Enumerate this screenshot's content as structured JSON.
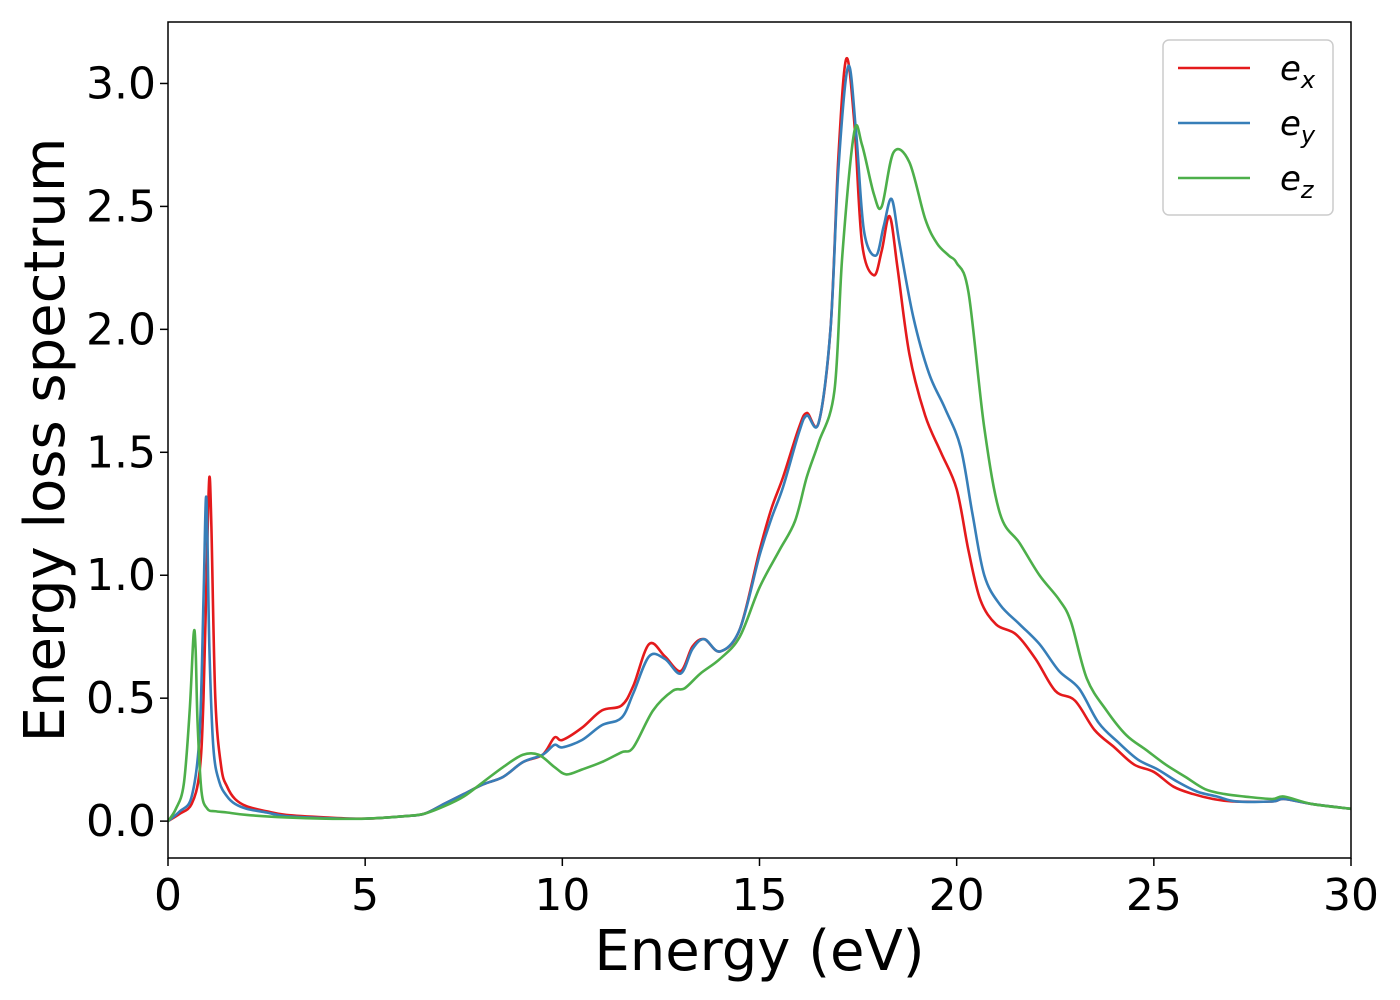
{
  "chart_data": {
    "type": "line",
    "title": "",
    "xlabel": "Energy (eV)",
    "ylabel": "Energy loss spectrum",
    "xlim": [
      0,
      30
    ],
    "ylim": [
      -0.15,
      3.25
    ],
    "xticks": [
      0,
      5,
      10,
      15,
      20,
      25,
      30
    ],
    "xtick_labels": [
      "0",
      "5",
      "10",
      "15",
      "20",
      "25",
      "30"
    ],
    "yticks": [
      0.0,
      0.5,
      1.0,
      1.5,
      2.0,
      2.5,
      3.0
    ],
    "ytick_labels": [
      "0.0",
      "0.5",
      "1.0",
      "1.5",
      "2.0",
      "2.5",
      "3.0"
    ],
    "grid": false,
    "legend_position": "top-right",
    "series": [
      {
        "name": "e_x",
        "name_base": "e",
        "name_sub": "x",
        "color": "#e41a1c",
        "x": [
          0,
          0.3,
          0.6,
          0.8,
          0.9,
          1.0,
          1.05,
          1.1,
          1.2,
          1.35,
          1.5,
          1.7,
          2.0,
          2.5,
          3,
          4,
          5,
          6,
          6.5,
          7,
          7.5,
          8,
          8.5,
          9,
          9.5,
          9.8,
          10,
          10.5,
          11,
          11.5,
          11.8,
          12.2,
          12.6,
          13,
          13.3,
          13.6,
          14,
          14.5,
          15,
          15.3,
          15.6,
          16,
          16.2,
          16.5,
          16.8,
          17.0,
          17.2,
          17.4,
          17.6,
          17.9,
          18.1,
          18.3,
          18.5,
          18.8,
          19.2,
          19.6,
          20,
          20.3,
          20.6,
          21,
          21.5,
          22,
          22.5,
          23,
          23.5,
          24,
          24.5,
          25,
          25.5,
          26,
          26.5,
          27,
          28,
          28.3,
          29,
          30
        ],
        "y": [
          0.0,
          0.03,
          0.07,
          0.2,
          0.5,
          1.15,
          1.4,
          1.2,
          0.5,
          0.22,
          0.14,
          0.09,
          0.06,
          0.04,
          0.025,
          0.015,
          0.01,
          0.02,
          0.03,
          0.07,
          0.11,
          0.15,
          0.18,
          0.24,
          0.27,
          0.34,
          0.33,
          0.38,
          0.45,
          0.47,
          0.55,
          0.72,
          0.67,
          0.61,
          0.71,
          0.74,
          0.69,
          0.78,
          1.1,
          1.27,
          1.4,
          1.6,
          1.66,
          1.62,
          2.0,
          2.7,
          3.1,
          2.85,
          2.35,
          2.22,
          2.32,
          2.46,
          2.25,
          1.9,
          1.65,
          1.5,
          1.35,
          1.1,
          0.9,
          0.8,
          0.76,
          0.66,
          0.53,
          0.49,
          0.37,
          0.3,
          0.23,
          0.2,
          0.14,
          0.11,
          0.09,
          0.08,
          0.08,
          0.09,
          0.07,
          0.05
        ]
      },
      {
        "name": "e_y",
        "name_base": "e",
        "name_sub": "y",
        "color": "#377eb8",
        "x": [
          0,
          0.3,
          0.6,
          0.8,
          0.9,
          0.96,
          1.0,
          1.05,
          1.15,
          1.3,
          1.5,
          1.7,
          2.0,
          2.5,
          3,
          4,
          5,
          6,
          6.5,
          7,
          7.5,
          8,
          8.5,
          9,
          9.5,
          9.8,
          10,
          10.5,
          11,
          11.5,
          11.8,
          12.2,
          12.6,
          13,
          13.3,
          13.6,
          14,
          14.5,
          15,
          15.3,
          15.6,
          16,
          16.2,
          16.5,
          16.8,
          17.0,
          17.25,
          17.45,
          17.65,
          17.95,
          18.15,
          18.35,
          18.55,
          18.9,
          19.3,
          19.7,
          20.1,
          20.4,
          20.7,
          21.1,
          21.6,
          22.1,
          22.6,
          23.1,
          23.6,
          24.1,
          24.6,
          25.1,
          25.6,
          26.1,
          26.6,
          27.1,
          28,
          28.3,
          29,
          30
        ],
        "y": [
          0.0,
          0.04,
          0.1,
          0.35,
          0.9,
          1.31,
          1.15,
          0.7,
          0.3,
          0.16,
          0.1,
          0.07,
          0.05,
          0.035,
          0.02,
          0.012,
          0.01,
          0.02,
          0.03,
          0.07,
          0.11,
          0.15,
          0.18,
          0.24,
          0.27,
          0.31,
          0.3,
          0.33,
          0.39,
          0.42,
          0.52,
          0.67,
          0.66,
          0.6,
          0.7,
          0.74,
          0.69,
          0.78,
          1.08,
          1.23,
          1.36,
          1.58,
          1.65,
          1.62,
          2.0,
          2.65,
          3.07,
          2.8,
          2.4,
          2.3,
          2.42,
          2.53,
          2.35,
          2.05,
          1.82,
          1.68,
          1.52,
          1.25,
          1.0,
          0.88,
          0.8,
          0.72,
          0.61,
          0.54,
          0.4,
          0.32,
          0.25,
          0.21,
          0.16,
          0.12,
          0.1,
          0.08,
          0.08,
          0.09,
          0.07,
          0.05
        ]
      },
      {
        "name": "e_z",
        "name_base": "e",
        "name_sub": "z",
        "color": "#4daf4a",
        "x": [
          0,
          0.2,
          0.4,
          0.55,
          0.65,
          0.7,
          0.75,
          0.85,
          1.0,
          1.2,
          1.5,
          2,
          3,
          4,
          5,
          6,
          6.5,
          7,
          7.5,
          8,
          8.5,
          9,
          9.4,
          9.8,
          10.1,
          10.5,
          11,
          11.5,
          11.8,
          12.3,
          12.8,
          13.1,
          13.5,
          14,
          14.5,
          15,
          15.5,
          15.9,
          16.2,
          16.5,
          16.9,
          17.1,
          17.4,
          17.6,
          17.9,
          18.1,
          18.4,
          18.8,
          19.2,
          19.5,
          19.8,
          20.0,
          20.3,
          20.7,
          21.1,
          21.6,
          22.1,
          22.6,
          22.9,
          23.3,
          23.8,
          24.3,
          24.8,
          25.3,
          25.8,
          26.3,
          26.8,
          27.3,
          28,
          28.3,
          29,
          30
        ],
        "y": [
          0.0,
          0.05,
          0.15,
          0.45,
          0.76,
          0.7,
          0.4,
          0.12,
          0.05,
          0.04,
          0.035,
          0.025,
          0.015,
          0.01,
          0.01,
          0.02,
          0.03,
          0.06,
          0.1,
          0.16,
          0.22,
          0.27,
          0.27,
          0.22,
          0.19,
          0.21,
          0.24,
          0.28,
          0.3,
          0.45,
          0.53,
          0.54,
          0.6,
          0.66,
          0.75,
          0.95,
          1.1,
          1.22,
          1.4,
          1.54,
          1.75,
          2.3,
          2.8,
          2.75,
          2.55,
          2.5,
          2.72,
          2.68,
          2.45,
          2.35,
          2.3,
          2.27,
          2.15,
          1.6,
          1.25,
          1.13,
          1.0,
          0.9,
          0.81,
          0.58,
          0.45,
          0.35,
          0.29,
          0.23,
          0.18,
          0.13,
          0.11,
          0.1,
          0.09,
          0.1,
          0.07,
          0.05
        ]
      }
    ]
  }
}
